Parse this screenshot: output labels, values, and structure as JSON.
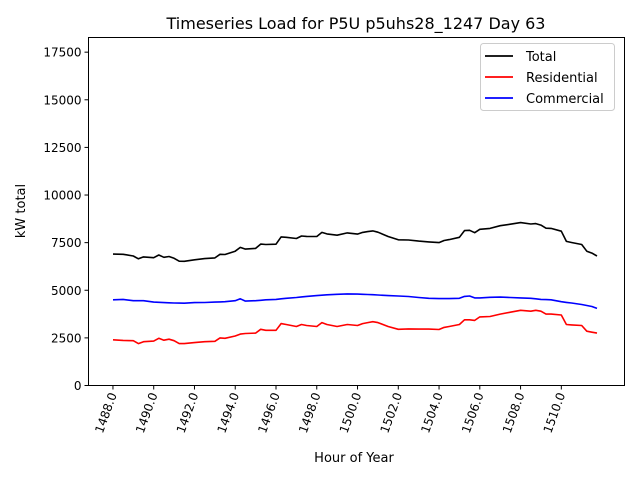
{
  "chart_data": {
    "type": "line",
    "title": "Timeseries Load for P5U p5uhs28_1247  Day 63",
    "xlabel": "Hour of Year",
    "ylabel": "kW total",
    "xlim": [
      1486.8,
      1513.1
    ],
    "ylim": [
      0,
      18270
    ],
    "xticks": [
      1488,
      1490,
      1492,
      1494,
      1496,
      1498,
      1500,
      1502,
      1504,
      1506,
      1508,
      1510
    ],
    "xtick_labels": [
      "1488.0",
      "1490.0",
      "1492.0",
      "1494.0",
      "1496.0",
      "1498.0",
      "1500.0",
      "1502.0",
      "1504.0",
      "1506.0",
      "1508.0",
      "1510.0"
    ],
    "yticks": [
      0,
      2500,
      5000,
      7500,
      10000,
      12500,
      15000,
      17500
    ],
    "ytick_labels": [
      "0",
      "2500",
      "5000",
      "7500",
      "10000",
      "12500",
      "15000",
      "17500"
    ],
    "grid": false,
    "legend_position": "top-right",
    "x": [
      1488,
      1488.5,
      1489,
      1489.25,
      1489.5,
      1490,
      1490.25,
      1490.5,
      1490.75,
      1491,
      1491.25,
      1491.5,
      1492,
      1492.5,
      1493,
      1493.25,
      1493.5,
      1494,
      1494.25,
      1494.5,
      1495,
      1495.25,
      1495.5,
      1496,
      1496.25,
      1496.5,
      1497,
      1497.25,
      1497.5,
      1498,
      1498.25,
      1498.5,
      1499,
      1499.5,
      1500,
      1500.25,
      1500.5,
      1500.75,
      1501,
      1501.5,
      1502,
      1502.5,
      1503,
      1503.5,
      1504,
      1504.25,
      1504.5,
      1505,
      1505.25,
      1505.5,
      1505.75,
      1506,
      1506.5,
      1507,
      1507.5,
      1508,
      1508.5,
      1508.75,
      1509,
      1509.25,
      1509.5,
      1510,
      1510.25,
      1510.5,
      1511,
      1511.25,
      1511.5,
      1511.75
    ],
    "series": [
      {
        "name": "Total",
        "color": "#000000",
        "values": [
          6900,
          6890,
          6800,
          6650,
          6750,
          6710,
          6850,
          6730,
          6770,
          6680,
          6525,
          6520,
          6600,
          6660,
          6700,
          6890,
          6880,
          7050,
          7250,
          7160,
          7200,
          7425,
          7400,
          7420,
          7800,
          7780,
          7720,
          7850,
          7830,
          7820,
          8040,
          7960,
          7890,
          8010,
          7950,
          8040,
          8080,
          8115,
          8050,
          7820,
          7650,
          7640,
          7580,
          7540,
          7500,
          7610,
          7660,
          7780,
          8130,
          8150,
          8020,
          8200,
          8250,
          8390,
          8470,
          8550,
          8480,
          8500,
          8420,
          8260,
          8250,
          8100,
          7565,
          7510,
          7400,
          7050,
          6950,
          6800
        ]
      },
      {
        "name": "Residential",
        "color": "#ff0000",
        "values": [
          2400,
          2370,
          2350,
          2200,
          2300,
          2330,
          2480,
          2380,
          2430,
          2350,
          2200,
          2200,
          2250,
          2300,
          2320,
          2500,
          2480,
          2600,
          2700,
          2730,
          2750,
          2950,
          2900,
          2900,
          3250,
          3200,
          3100,
          3200,
          3150,
          3100,
          3300,
          3200,
          3100,
          3200,
          3150,
          3250,
          3300,
          3350,
          3300,
          3100,
          2950,
          2970,
          2960,
          2960,
          2940,
          3050,
          3100,
          3200,
          3450,
          3450,
          3420,
          3600,
          3620,
          3750,
          3850,
          3950,
          3900,
          3950,
          3900,
          3750,
          3750,
          3700,
          3200,
          3180,
          3150,
          2850,
          2800,
          2750
        ]
      },
      {
        "name": "Commercial",
        "color": "#0000ff",
        "values": [
          4500,
          4520,
          4450,
          4450,
          4450,
          4380,
          4370,
          4350,
          4340,
          4330,
          4325,
          4320,
          4350,
          4360,
          4380,
          4390,
          4400,
          4450,
          4550,
          4430,
          4450,
          4475,
          4500,
          4520,
          4550,
          4580,
          4620,
          4650,
          4680,
          4720,
          4740,
          4760,
          4790,
          4810,
          4800,
          4790,
          4780,
          4765,
          4750,
          4720,
          4700,
          4670,
          4620,
          4580,
          4560,
          4560,
          4560,
          4580,
          4680,
          4700,
          4600,
          4600,
          4630,
          4640,
          4620,
          4600,
          4580,
          4550,
          4520,
          4510,
          4500,
          4400,
          4365,
          4330,
          4250,
          4200,
          4150,
          4050
        ]
      }
    ]
  }
}
